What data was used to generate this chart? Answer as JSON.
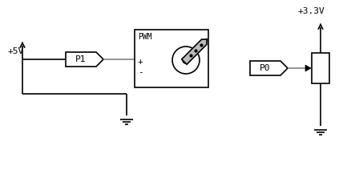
{
  "bg_color": "#ffffff",
  "line_color": "#000000",
  "gray_color": "#808080",
  "label_5v": "+5V",
  "label_33v": "+3.3V",
  "label_p1": "P1",
  "label_p0": "P0",
  "label_pwm": "PWM",
  "label_plus": "+",
  "label_minus": "-",
  "fig_width": 4.38,
  "fig_height": 2.12,
  "dpi": 100
}
